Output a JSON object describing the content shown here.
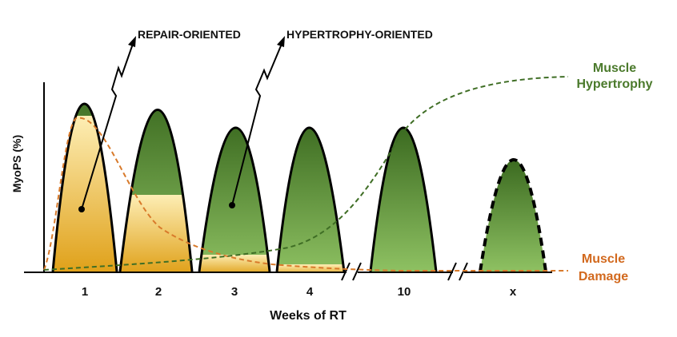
{
  "diagram": {
    "y_axis_label": "MyoPS (%)",
    "x_axis_label": "Weeks of RT",
    "weeks": [
      "1",
      "2",
      "3",
      "4",
      "10",
      "x"
    ],
    "annotations": {
      "repair": "REPAIR-ORIENTED",
      "hypertrophy": "HYPERTROPHY-ORIENTED"
    },
    "curves": {
      "hypertrophy_line1": "Muscle",
      "hypertrophy_line2": "Hypertrophy",
      "damage_line1": "Muscle",
      "damage_line2": "Damage"
    },
    "colors": {
      "repair_fill_top": "#fde9a6",
      "repair_fill_bottom": "#e0a21a",
      "hypertrophy_fill_top": "#3e6d22",
      "hypertrophy_fill_bottom": "#8cc060",
      "hypertrophy_curve": "#3f6e25",
      "damage_curve": "#d87a2b",
      "hypertrophy_text": "#4b7a2c",
      "damage_text": "#d2691e"
    }
  }
}
